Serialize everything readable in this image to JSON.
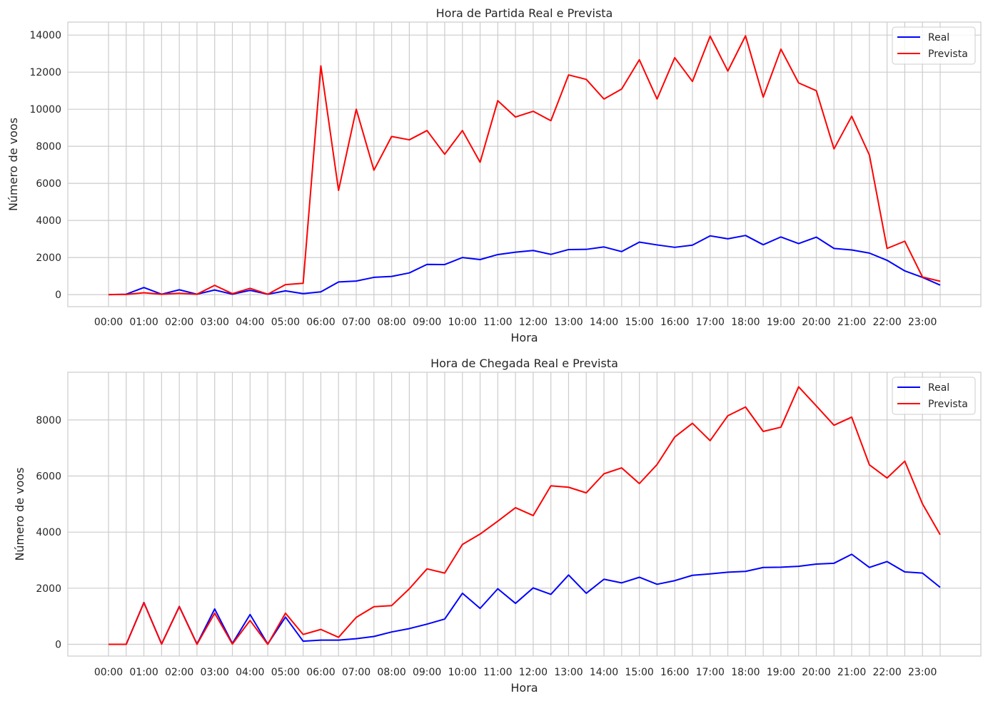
{
  "chart_data": [
    {
      "type": "line",
      "title": "Hora de Partida Real e Prevista",
      "xlabel": "Hora",
      "ylabel": "Número de voos",
      "x_tick_labels": [
        "00:00",
        "01:00",
        "02:00",
        "03:00",
        "04:00",
        "05:00",
        "06:00",
        "07:00",
        "08:00",
        "09:00",
        "10:00",
        "11:00",
        "12:00",
        "13:00",
        "14:00",
        "15:00",
        "16:00",
        "17:00",
        "18:00",
        "19:00",
        "20:00",
        "21:00",
        "22:00",
        "23:00"
      ],
      "x": [
        0,
        0.5,
        1,
        1.5,
        2,
        2.5,
        3,
        3.5,
        4,
        4.5,
        5,
        5.5,
        6,
        6.5,
        7,
        7.5,
        8,
        8.5,
        9,
        9.5,
        10,
        10.5,
        11,
        11.5,
        12,
        12.5,
        13,
        13.5,
        14,
        14.5,
        15,
        15.5,
        16,
        16.5,
        17,
        17.5,
        18,
        18.5,
        19,
        19.5,
        20,
        20.5,
        21,
        21.5,
        22,
        22.5,
        23,
        23.5
      ],
      "xlim": [
        -1.15,
        24.65
      ],
      "ylim": [
        -650,
        14700
      ],
      "yticks": [
        0,
        2000,
        4000,
        6000,
        8000,
        10000,
        12000,
        14000
      ],
      "grid": true,
      "legend": "top-right",
      "series": [
        {
          "name": "Real",
          "color": "#0000ff",
          "values": [
            0,
            20,
            380,
            20,
            260,
            20,
            250,
            20,
            230,
            20,
            200,
            50,
            150,
            680,
            730,
            930,
            980,
            1170,
            1630,
            1620,
            2000,
            1890,
            2160,
            2290,
            2380,
            2170,
            2430,
            2440,
            2570,
            2320,
            2830,
            2680,
            2550,
            2670,
            3170,
            3010,
            3190,
            2690,
            3110,
            2750,
            3100,
            2490,
            2410,
            2240,
            1850,
            1280,
            930,
            510
          ]
        },
        {
          "name": "Prevista",
          "color": "#ff0000",
          "values": [
            0,
            10,
            100,
            20,
            70,
            20,
            500,
            50,
            340,
            20,
            540,
            610,
            12340,
            5620,
            10000,
            6710,
            8530,
            8350,
            8850,
            7570,
            8850,
            7140,
            10460,
            9580,
            9890,
            9380,
            11850,
            11610,
            10550,
            11090,
            12670,
            10550,
            12780,
            11500,
            13940,
            12060,
            13960,
            10650,
            13240,
            11420,
            11000,
            7860,
            9620,
            7530,
            2490,
            2880,
            950,
            720
          ]
        }
      ]
    },
    {
      "type": "line",
      "title": "Hora de Chegada Real e Prevista",
      "xlabel": "Hora",
      "ylabel": "Número de voos",
      "x_tick_labels": [
        "00:00",
        "01:00",
        "02:00",
        "03:00",
        "04:00",
        "05:00",
        "06:00",
        "07:00",
        "08:00",
        "09:00",
        "10:00",
        "11:00",
        "12:00",
        "13:00",
        "14:00",
        "15:00",
        "16:00",
        "17:00",
        "18:00",
        "19:00",
        "20:00",
        "21:00",
        "22:00",
        "23:00"
      ],
      "x": [
        0,
        0.5,
        1,
        1.5,
        2,
        2.5,
        3,
        3.5,
        4,
        4.5,
        5,
        5.5,
        6,
        6.5,
        7,
        7.5,
        8,
        8.5,
        9,
        9.5,
        10,
        10.5,
        11,
        11.5,
        12,
        12.5,
        13,
        13.5,
        14,
        14.5,
        15,
        15.5,
        16,
        16.5,
        17,
        17.5,
        18,
        18.5,
        19,
        19.5,
        20,
        20.5,
        21,
        21.5,
        22,
        22.5,
        23,
        23.5
      ],
      "xlim": [
        -1.15,
        24.65
      ],
      "ylim": [
        -420,
        9700
      ],
      "yticks": [
        0,
        2000,
        4000,
        6000,
        8000
      ],
      "grid": true,
      "legend": "top-right",
      "series": [
        {
          "name": "Real",
          "color": "#0000ff",
          "values": [
            0,
            0,
            1490,
            10,
            1350,
            10,
            1260,
            30,
            1060,
            10,
            970,
            110,
            150,
            150,
            200,
            280,
            440,
            560,
            720,
            900,
            1820,
            1280,
            1980,
            1460,
            2010,
            1780,
            2470,
            1820,
            2320,
            2190,
            2390,
            2140,
            2270,
            2460,
            2510,
            2570,
            2600,
            2740,
            2750,
            2780,
            2860,
            2890,
            3210,
            2740,
            2950,
            2580,
            2540,
            2030
          ]
        },
        {
          "name": "Prevista",
          "color": "#ff0000",
          "values": [
            0,
            0,
            1480,
            10,
            1340,
            0,
            1110,
            10,
            850,
            0,
            1110,
            350,
            530,
            250,
            960,
            1340,
            1380,
            1980,
            2690,
            2540,
            3560,
            3930,
            4390,
            4870,
            4590,
            5650,
            5600,
            5400,
            6080,
            6290,
            5730,
            6410,
            7390,
            7880,
            7260,
            8150,
            8460,
            7590,
            7740,
            9180,
            8500,
            7810,
            8100,
            6400,
            5930,
            6530,
            5010,
            3910
          ]
        }
      ]
    }
  ]
}
